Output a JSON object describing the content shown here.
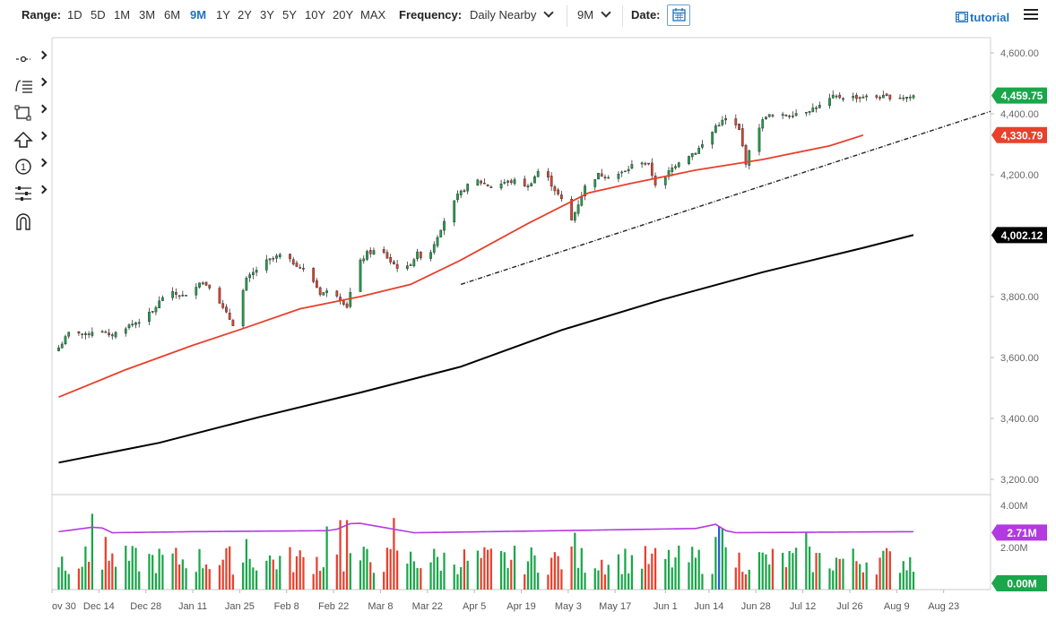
{
  "toolbar": {
    "range_label": "Range:",
    "ranges": [
      "1D",
      "5D",
      "1M",
      "3M",
      "6M",
      "9M",
      "1Y",
      "2Y",
      "3Y",
      "5Y",
      "10Y",
      "20Y",
      "MAX"
    ],
    "active_range": "9M",
    "frequency_label": "Frequency:",
    "frequency_value": "Daily Nearby",
    "period_value": "9M",
    "date_label": "Date:",
    "tutorial_label": "tutorial"
  },
  "tools": [
    {
      "icon": "crosshair-icon"
    },
    {
      "icon": "studies-list-icon"
    },
    {
      "icon": "rectangle-icon"
    },
    {
      "icon": "arrow-up-icon"
    },
    {
      "icon": "circle-1-icon",
      "glyph": "1"
    },
    {
      "icon": "settings-sliders-icon"
    },
    {
      "icon": "magnet-icon"
    }
  ],
  "colors": {
    "up": "#1aa64a",
    "down": "#e8402c",
    "ma_fast": "#e8402c",
    "ma_slow": "#000000",
    "vol_avg": "#b23ae0",
    "highlight_bar": "#2a5bd7",
    "accent": "#1e73be"
  },
  "chart_data": {
    "type": "candlestick",
    "ylim": [
      3150,
      4650
    ],
    "y_ticks": [
      3200,
      3400,
      3600,
      3800,
      4000,
      4200,
      4400,
      4600
    ],
    "y_tick_labels": [
      "3,200.00",
      "3,400.00",
      "3,600.00",
      "3,800.00",
      "4,000.00",
      "4,200.00",
      "4,400.00",
      "4,600.00"
    ],
    "x_labels": [
      "ov 30",
      "Dec 14",
      "Dec 28",
      "Jan 11",
      "Jan 25",
      "Feb 8",
      "Feb 22",
      "Mar 8",
      "Mar 22",
      "Apr 5",
      "Apr 19",
      "May 3",
      "May 17",
      "Jun 1",
      "Jun 14",
      "Jun 28",
      "Jul 12",
      "Jul 26",
      "Aug 9",
      "Aug 23"
    ],
    "x_label_days": [
      -2,
      12,
      26,
      40,
      54,
      68,
      82,
      96,
      110,
      124,
      138,
      152,
      166,
      181,
      194,
      208,
      222,
      236,
      250,
      264
    ],
    "first_day": 0,
    "last_day": 255,
    "x_domain_days": [
      -2,
      278
    ],
    "close_anchors": [
      {
        "day": 0,
        "close": 3632
      },
      {
        "day": 4,
        "close": 3695
      },
      {
        "day": 8,
        "close": 3672
      },
      {
        "day": 12,
        "close": 3700
      },
      {
        "day": 15,
        "close": 3668
      },
      {
        "day": 20,
        "close": 3700
      },
      {
        "day": 24,
        "close": 3720
      },
      {
        "day": 28,
        "close": 3750
      },
      {
        "day": 32,
        "close": 3815
      },
      {
        "day": 38,
        "close": 3800
      },
      {
        "day": 42,
        "close": 3850
      },
      {
        "day": 46,
        "close": 3830
      },
      {
        "day": 49,
        "close": 3760
      },
      {
        "day": 52,
        "close": 3710
      },
      {
        "day": 56,
        "close": 3855
      },
      {
        "day": 61,
        "close": 3910
      },
      {
        "day": 66,
        "close": 3935
      },
      {
        "day": 71,
        "close": 3905
      },
      {
        "day": 75,
        "close": 3870
      },
      {
        "day": 78,
        "close": 3811
      },
      {
        "day": 82,
        "close": 3820
      },
      {
        "day": 86,
        "close": 3768
      },
      {
        "day": 89,
        "close": 3900
      },
      {
        "day": 92,
        "close": 3942
      },
      {
        "day": 96,
        "close": 3955
      },
      {
        "day": 99,
        "close": 3915
      },
      {
        "day": 103,
        "close": 3880
      },
      {
        "day": 107,
        "close": 3940
      },
      {
        "day": 110,
        "close": 3920
      },
      {
        "day": 112,
        "close": 3975
      },
      {
        "day": 115,
        "close": 4050
      },
      {
        "day": 119,
        "close": 4130
      },
      {
        "day": 124,
        "close": 4185
      },
      {
        "day": 129,
        "close": 4160
      },
      {
        "day": 133,
        "close": 4175
      },
      {
        "day": 137,
        "close": 4180
      },
      {
        "day": 140,
        "close": 4160
      },
      {
        "day": 144,
        "close": 4228
      },
      {
        "day": 147,
        "close": 4168
      },
      {
        "day": 151,
        "close": 4100
      },
      {
        "day": 153,
        "close": 4050
      },
      {
        "day": 157,
        "close": 4160
      },
      {
        "day": 161,
        "close": 4200
      },
      {
        "day": 165,
        "close": 4195
      },
      {
        "day": 169,
        "close": 4210
      },
      {
        "day": 173,
        "close": 4250
      },
      {
        "day": 176,
        "close": 4230
      },
      {
        "day": 179,
        "close": 4140
      },
      {
        "day": 182,
        "close": 4210
      },
      {
        "day": 186,
        "close": 4255
      },
      {
        "day": 190,
        "close": 4275
      },
      {
        "day": 194,
        "close": 4320
      },
      {
        "day": 196,
        "close": 4360
      },
      {
        "day": 200,
        "close": 4390
      },
      {
        "day": 203,
        "close": 4345
      },
      {
        "day": 205,
        "close": 4240
      },
      {
        "day": 208,
        "close": 4340
      },
      {
        "day": 211,
        "close": 4395
      },
      {
        "day": 215,
        "close": 4390
      },
      {
        "day": 219,
        "close": 4400
      },
      {
        "day": 223,
        "close": 4410
      },
      {
        "day": 227,
        "close": 4425
      },
      {
        "day": 231,
        "close": 4455
      }
    ],
    "last_price": 4459.75,
    "last_price_label": "4,459.75",
    "ma_fast": {
      "label": "4,330.79",
      "points": [
        {
          "day": 0,
          "v": 3470
        },
        {
          "day": 20,
          "v": 3560
        },
        {
          "day": 40,
          "v": 3640
        },
        {
          "day": 55,
          "v": 3695
        },
        {
          "day": 72,
          "v": 3760
        },
        {
          "day": 90,
          "v": 3800
        },
        {
          "day": 105,
          "v": 3840
        },
        {
          "day": 120,
          "v": 3920
        },
        {
          "day": 140,
          "v": 4040
        },
        {
          "day": 158,
          "v": 4140
        },
        {
          "day": 170,
          "v": 4170
        },
        {
          "day": 190,
          "v": 4215
        },
        {
          "day": 210,
          "v": 4250
        },
        {
          "day": 230,
          "v": 4295
        },
        {
          "day": 240,
          "v": 4330
        }
      ]
    },
    "ma_slow": {
      "label": "4,002.12",
      "points": [
        {
          "day": 0,
          "v": 3255
        },
        {
          "day": 30,
          "v": 3320
        },
        {
          "day": 60,
          "v": 3405
        },
        {
          "day": 90,
          "v": 3485
        },
        {
          "day": 120,
          "v": 3570
        },
        {
          "day": 150,
          "v": 3690
        },
        {
          "day": 180,
          "v": 3790
        },
        {
          "day": 210,
          "v": 3880
        },
        {
          "day": 240,
          "v": 3960
        },
        {
          "day": 255,
          "v": 4002
        }
      ]
    },
    "trendline": {
      "from": {
        "day": 120,
        "v": 3840
      },
      "to": {
        "day": 278,
        "v": 4408
      }
    },
    "volume": {
      "ylim": [
        0,
        4.0
      ],
      "tick_label": "4.00M",
      "mid_tick_label": "2.00M",
      "avg_label": "2.71M",
      "zero_label": "0.00M",
      "avg_anchors": [
        {
          "day": 0,
          "v": 2.75
        },
        {
          "day": 12,
          "v": 3.0
        },
        {
          "day": 16,
          "v": 2.7
        },
        {
          "day": 40,
          "v": 2.75
        },
        {
          "day": 82,
          "v": 2.8
        },
        {
          "day": 88,
          "v": 3.2
        },
        {
          "day": 106,
          "v": 2.7
        },
        {
          "day": 150,
          "v": 2.8
        },
        {
          "day": 190,
          "v": 2.9
        },
        {
          "day": 196,
          "v": 3.1
        },
        {
          "day": 200,
          "v": 2.7
        },
        {
          "day": 255,
          "v": 2.75
        }
      ],
      "spike_days": [
        {
          "day": 10,
          "v": 3.6
        },
        {
          "day": 12,
          "v": 3.9
        },
        {
          "day": 14,
          "v": 2.5
        },
        {
          "day": 54,
          "v": 2.9
        },
        {
          "day": 56,
          "v": 2.4
        },
        {
          "day": 80,
          "v": 3.0
        },
        {
          "day": 84,
          "v": 3.3
        },
        {
          "day": 86,
          "v": 3.3
        },
        {
          "day": 96,
          "v": 3.0
        },
        {
          "day": 100,
          "v": 3.4
        },
        {
          "day": 154,
          "v": 2.7
        },
        {
          "day": 196,
          "v": 2.5
        },
        {
          "day": 197,
          "v": 3.0
        },
        {
          "day": 198,
          "v": 2.9
        },
        {
          "day": 223,
          "v": 2.7
        }
      ]
    }
  }
}
